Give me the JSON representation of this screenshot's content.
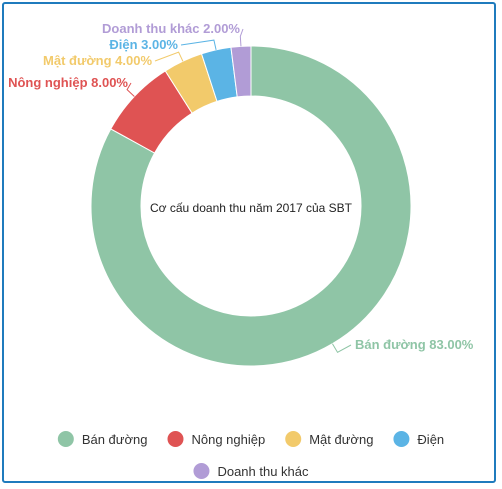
{
  "chart_data": {
    "type": "pie",
    "donut": true,
    "title": "Cơ cấu doanh thu năm 2017 của SBT",
    "slices": [
      {
        "name": "Bán đường",
        "value": 83.0,
        "label": "Bán đường 83.00%",
        "color": "#8fc5a6"
      },
      {
        "name": "Nông nghiệp",
        "value": 8.0,
        "label": "Nông nghiệp 8.00%",
        "color": "#df5353"
      },
      {
        "name": "Mật đường",
        "value": 4.0,
        "label": "Mật đường 4.00%",
        "color": "#f2ca6b"
      },
      {
        "name": "Điện",
        "value": 3.0,
        "label": "Điện 3.00%",
        "color": "#5bb4e5"
      },
      {
        "name": "Doanh thu khác",
        "value": 2.0,
        "label": "Doanh thu khác 2.00%",
        "color": "#b19cd6"
      }
    ],
    "legend": {
      "position": "bottom"
    }
  }
}
